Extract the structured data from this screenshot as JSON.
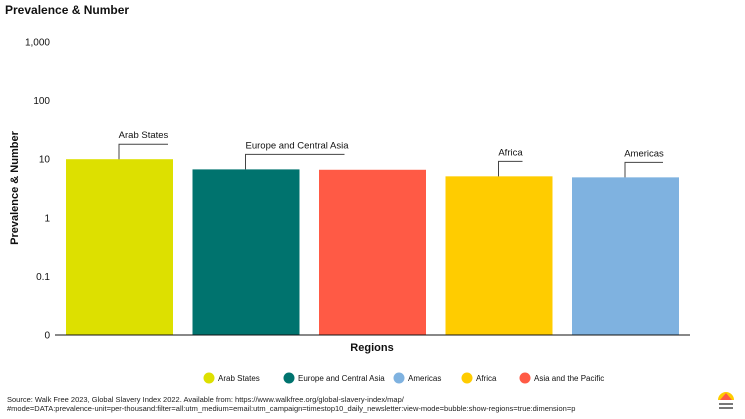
{
  "title": "Prevalence & Number",
  "source_line1": "Source: Walk Free 2023, Global Slavery Index 2022. Available from: https://www.walkfree.org/global-slavery-index/map/",
  "source_line2": "#mode=DATA:prevalence-unit=per-thousand:filter=all:utm_medium=email:utm_campaign=timestop10_daily_newsletter:view-mode=bubble:show-regions=true:dimension=p",
  "logo_text": "WALK FREE",
  "chart_data": {
    "type": "bar",
    "title": "Prevalence & Number",
    "xlabel": "Regions",
    "ylabel": "Prevalence & Number",
    "yscale": "log",
    "yticks": [
      {
        "value": 0.01,
        "label": "0"
      },
      {
        "value": 0.1,
        "label": "0.1"
      },
      {
        "value": 1,
        "label": "1"
      },
      {
        "value": 10,
        "label": "10"
      },
      {
        "value": 100,
        "label": "100"
      },
      {
        "value": 1000,
        "label": "1,000"
      }
    ],
    "ylim": [
      0.01,
      1000
    ],
    "grid": false,
    "legend_position": "bottom",
    "categories": [
      "Arab States",
      "Europe and Central Asia",
      "Asia and the Pacific",
      "Africa",
      "Americas"
    ],
    "values": [
      10,
      6.7,
      6.6,
      5.1,
      4.9
    ],
    "colors": [
      "#dde000",
      "#00736e",
      "#ff5a45",
      "#ffcc00",
      "#7fb2e0"
    ],
    "annotations": [
      "Arab States",
      "Europe and Central Asia",
      "",
      "Africa",
      "Americas"
    ],
    "legend": [
      {
        "name": "Arab States",
        "color": "#dde000"
      },
      {
        "name": "Europe and Central Asia",
        "color": "#00736e"
      },
      {
        "name": "Americas",
        "color": "#7fb2e0"
      },
      {
        "name": "Africa",
        "color": "#ffcc00"
      },
      {
        "name": "Asia and the Pacific",
        "color": "#ff5a45"
      }
    ]
  }
}
